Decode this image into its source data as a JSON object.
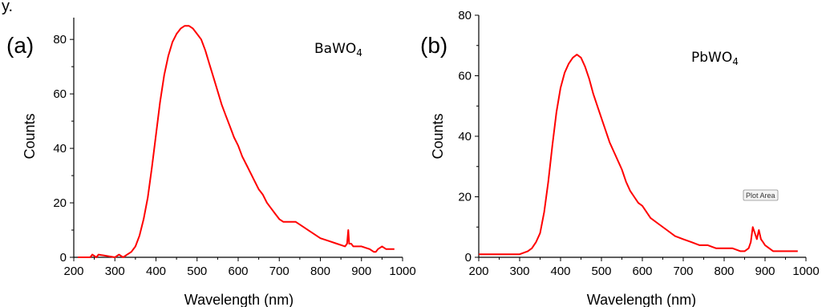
{
  "stray_text": "y.",
  "chart_data": [
    {
      "type": "line",
      "panel_label": "(a)",
      "annotation_main": "BaWO",
      "annotation_sub": "4",
      "title": "",
      "xlabel": "Wavelength (nm)",
      "ylabel": "Counts",
      "xlim": [
        200,
        1000
      ],
      "ylim": [
        0,
        88
      ],
      "xticks": [
        200,
        300,
        400,
        500,
        600,
        700,
        800,
        900,
        1000
      ],
      "yticks": [
        0,
        20,
        40,
        60,
        80
      ],
      "grid": false,
      "color": "#ff0000",
      "series": [
        {
          "x": [
            210,
            240,
            245,
            255,
            260,
            300,
            310,
            320,
            330,
            340,
            350,
            360,
            370,
            380,
            390,
            400,
            410,
            420,
            430,
            440,
            450,
            460,
            470,
            480,
            490,
            500,
            510,
            520,
            530,
            540,
            550,
            560,
            570,
            580,
            590,
            600,
            610,
            620,
            630,
            640,
            650,
            660,
            670,
            680,
            690,
            700,
            710,
            720,
            740,
            750,
            760,
            780,
            800,
            820,
            840,
            860,
            865,
            868,
            870,
            875,
            880,
            900,
            920,
            930,
            935,
            940,
            950,
            960,
            970,
            980
          ],
          "y": [
            0,
            0,
            1,
            0,
            1,
            0,
            1,
            0,
            1,
            2,
            4,
            8,
            14,
            22,
            33,
            45,
            57,
            67,
            74,
            79,
            82,
            84,
            85,
            85,
            84,
            82,
            80,
            76,
            71,
            66,
            61,
            56,
            52,
            48,
            44,
            41,
            37,
            34,
            31,
            28,
            25,
            23,
            20,
            18,
            16,
            14,
            13,
            13,
            13,
            12,
            11,
            9,
            7,
            6,
            5,
            4,
            5,
            10,
            5,
            5,
            4,
            4,
            3,
            2,
            2,
            3,
            4,
            3,
            3,
            3
          ]
        }
      ]
    },
    {
      "type": "line",
      "panel_label": "(b)",
      "annotation_main": "PbWO",
      "annotation_sub": "4",
      "tooltip": "Plot Area",
      "title": "",
      "xlabel": "Wavelength (nm)",
      "ylabel": "Counts",
      "xlim": [
        200,
        1000
      ],
      "ylim": [
        0,
        80
      ],
      "xticks": [
        200,
        300,
        400,
        500,
        600,
        700,
        800,
        900,
        1000
      ],
      "yticks": [
        0,
        20,
        40,
        60,
        80
      ],
      "grid": false,
      "color": "#ff0000",
      "series": [
        {
          "x": [
            200,
            300,
            320,
            330,
            340,
            350,
            360,
            370,
            380,
            390,
            400,
            410,
            420,
            430,
            440,
            450,
            460,
            470,
            480,
            490,
            500,
            510,
            520,
            530,
            540,
            550,
            560,
            570,
            580,
            590,
            600,
            620,
            640,
            660,
            680,
            700,
            720,
            740,
            760,
            780,
            800,
            820,
            840,
            850,
            860,
            865,
            870,
            875,
            880,
            885,
            890,
            895,
            900,
            910,
            920,
            940,
            960,
            980
          ],
          "y": [
            1,
            1,
            2,
            3,
            5,
            8,
            15,
            25,
            37,
            48,
            56,
            61,
            64,
            66,
            67,
            66,
            63,
            59,
            54,
            50,
            46,
            42,
            38,
            35,
            32,
            29,
            25,
            22,
            20,
            18,
            17,
            13,
            11,
            9,
            7,
            6,
            5,
            4,
            4,
            3,
            3,
            3,
            2,
            2,
            3,
            5,
            10,
            8,
            6,
            9,
            6,
            5,
            4,
            3,
            2,
            2,
            2,
            2
          ]
        }
      ]
    }
  ]
}
